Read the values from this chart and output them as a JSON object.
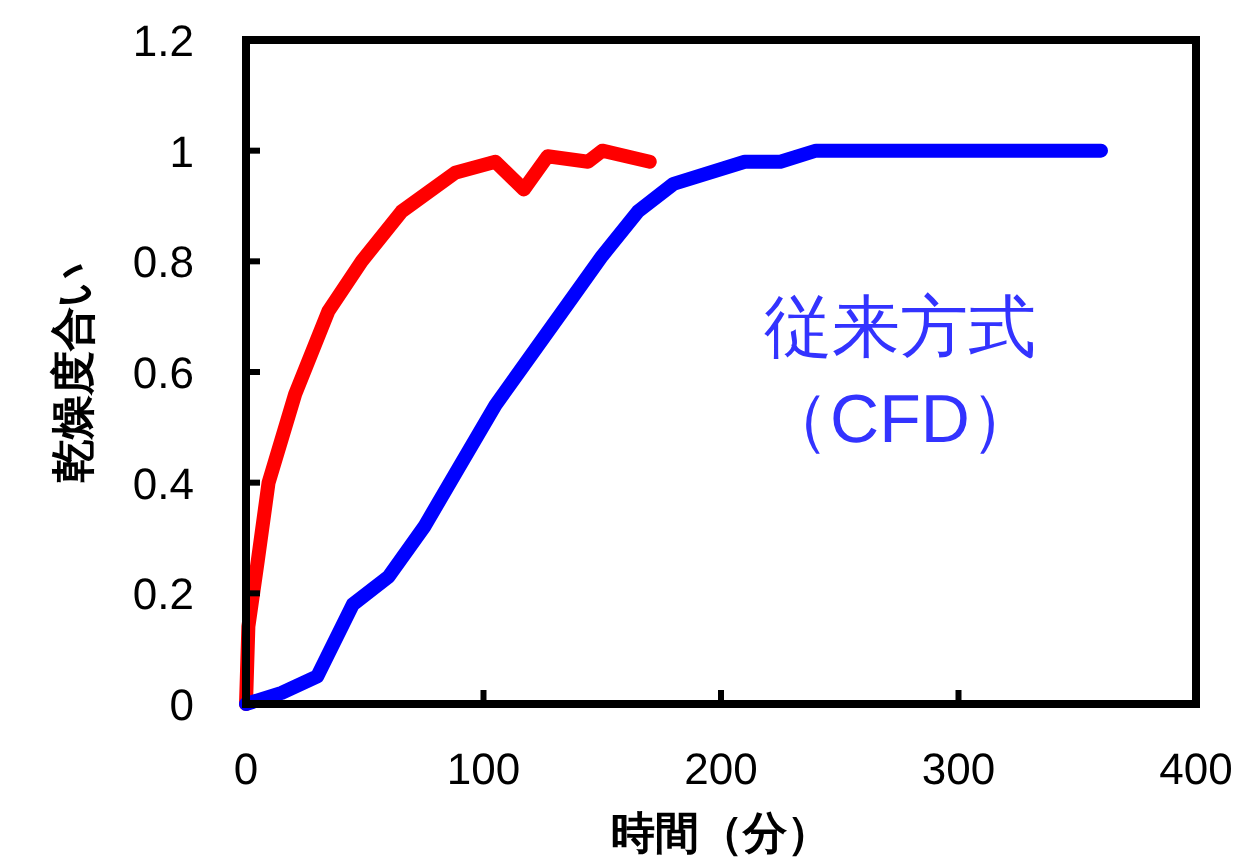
{
  "chart_data": {
    "type": "line",
    "xlabel": "時間（分）",
    "ylabel": "乾燥度合い",
    "xlim": [
      0,
      400
    ],
    "xticks": [
      0,
      100,
      200,
      300,
      400
    ],
    "ylim": [
      0,
      1.2
    ],
    "yticks": [
      0,
      0.2,
      0.4,
      0.6,
      0.8,
      1,
      1.2
    ],
    "grid": false,
    "marker": "none",
    "line_style": "solid",
    "series": [
      {
        "color": "#ff0000",
        "x": [
          0,
          1,
          5,
          9.5,
          20.7,
          34.7,
          48.7,
          65.5,
          88,
          105,
          117,
          127,
          144,
          150,
          170
        ],
        "values": [
          0,
          0.14,
          0.26,
          0.4,
          0.56,
          0.71,
          0.8,
          0.89,
          0.96,
          0.98,
          0.93,
          0.99,
          0.98,
          1,
          0.98
        ]
      },
      {
        "name": "従来方式（CFD）",
        "color": "#0000ff",
        "x": [
          0,
          15,
          30,
          45,
          60,
          75,
          90,
          105,
          120,
          135,
          150,
          165,
          180,
          210,
          225,
          240,
          360
        ],
        "values": [
          0,
          0.02,
          0.05,
          0.18,
          0.23,
          0.32,
          0.43,
          0.54,
          0.63,
          0.72,
          0.81,
          0.89,
          0.94,
          0.98,
          0.98,
          1,
          1
        ]
      }
    ]
  }
}
